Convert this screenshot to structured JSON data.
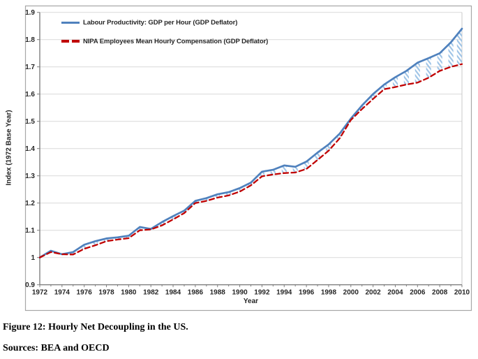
{
  "figure": {
    "caption_label": "Figure 12:",
    "caption_title": "Hourly Net Decoupling in the US.",
    "sources": "Sources: BEA and OECD"
  },
  "chart_data": {
    "type": "line",
    "title": "",
    "xlabel": "Year",
    "ylabel": "Index (1972 Base Year)",
    "ylim": [
      0.9,
      1.9
    ],
    "ytick_step": 0.1,
    "y_tick_labels": [
      "0.9",
      "1",
      "1.1",
      "1.2",
      "1.3",
      "1.4",
      "1.5",
      "1.6",
      "1.7",
      "1.8",
      "1.9"
    ],
    "x_tick_labels": [
      "1972",
      "1974",
      "1976",
      "1978",
      "1980",
      "1982",
      "1984",
      "1986",
      "1988",
      "1990",
      "1992",
      "1994",
      "1996",
      "1998",
      "2000",
      "2002",
      "2004",
      "2006",
      "2008",
      "2010"
    ],
    "grid": true,
    "legend_position": "top-left-inside",
    "x": [
      1972,
      1973,
      1974,
      1975,
      1976,
      1977,
      1978,
      1979,
      1980,
      1981,
      1982,
      1983,
      1984,
      1985,
      1986,
      1987,
      1988,
      1989,
      1990,
      1991,
      1992,
      1993,
      1994,
      1995,
      1996,
      1997,
      1998,
      1999,
      2000,
      2001,
      2002,
      2003,
      2004,
      2005,
      2006,
      2007,
      2008,
      2009,
      2010
    ],
    "series": [
      {
        "name": "Labour Productivity: GDP per Hour (GDP Deflator)",
        "color": "#4f81bd",
        "style": "solid",
        "values": [
          1.0,
          1.025,
          1.012,
          1.02,
          1.047,
          1.06,
          1.07,
          1.074,
          1.08,
          1.112,
          1.105,
          1.13,
          1.152,
          1.172,
          1.208,
          1.218,
          1.232,
          1.24,
          1.255,
          1.275,
          1.315,
          1.322,
          1.338,
          1.333,
          1.352,
          1.385,
          1.415,
          1.455,
          1.51,
          1.558,
          1.6,
          1.635,
          1.662,
          1.685,
          1.715,
          1.732,
          1.75,
          1.79,
          1.84
        ]
      },
      {
        "name": "NIPA Employees Mean Hourly Compensation (GDP Deflator)",
        "color": "#c00000",
        "style": "dashed",
        "values": [
          1.0,
          1.02,
          1.012,
          1.011,
          1.032,
          1.045,
          1.06,
          1.066,
          1.071,
          1.1,
          1.103,
          1.118,
          1.14,
          1.163,
          1.2,
          1.208,
          1.22,
          1.228,
          1.242,
          1.265,
          1.298,
          1.305,
          1.31,
          1.312,
          1.325,
          1.358,
          1.392,
          1.438,
          1.505,
          1.545,
          1.582,
          1.618,
          1.626,
          1.635,
          1.642,
          1.66,
          1.685,
          1.7,
          1.71
        ]
      }
    ],
    "gap_fill": {
      "style": "diagonal-hatch",
      "color": "#9dc3e6",
      "min_gap": 0.008,
      "meaning": "net decoupling gap between productivity and compensation"
    },
    "colors": {
      "gridline": "#d9d9d9",
      "axis": "#7f7f7f",
      "plot_right_edge": "#c9c9c9",
      "border": "#a6a6a6",
      "text": "#262626"
    }
  }
}
